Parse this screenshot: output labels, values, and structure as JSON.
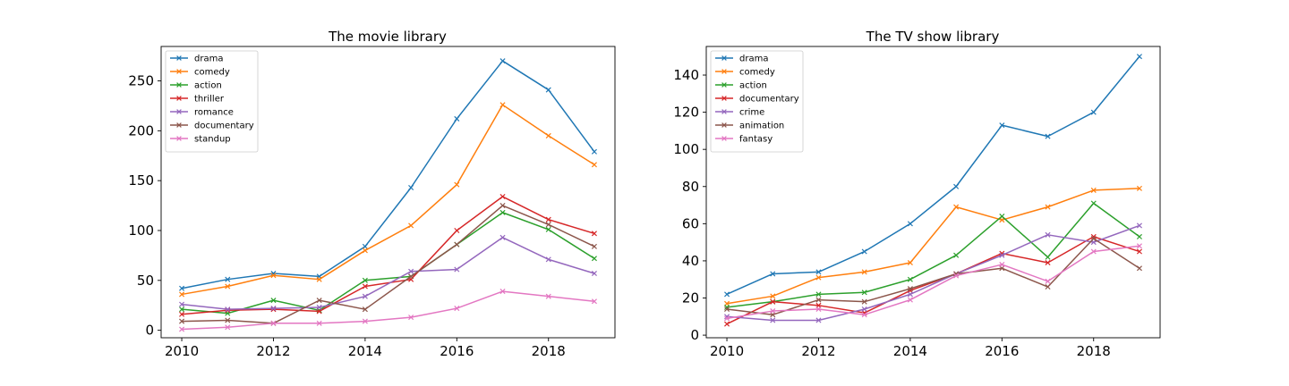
{
  "chart_data": [
    {
      "type": "line",
      "title": "The movie library",
      "xlabel": "",
      "ylabel": "",
      "x": [
        2010,
        2011,
        2012,
        2013,
        2014,
        2015,
        2016,
        2017,
        2018,
        2019
      ],
      "xlim": [
        2009.55,
        2019.45
      ],
      "ylim": [
        -7.5,
        284.5
      ],
      "xticks": [
        2010,
        2012,
        2014,
        2016,
        2018
      ],
      "yticks": [
        0,
        50,
        100,
        150,
        200,
        250
      ],
      "grid": false,
      "legend": "top-left",
      "marker": "x",
      "series": [
        {
          "name": "drama",
          "color": "#1f77b4",
          "values": [
            42,
            51,
            57,
            54,
            84,
            143,
            212,
            270,
            241,
            179
          ]
        },
        {
          "name": "comedy",
          "color": "#ff7f0e",
          "values": [
            36,
            44,
            55,
            51,
            80,
            105,
            146,
            226,
            195,
            166
          ]
        },
        {
          "name": "action",
          "color": "#2ca02c",
          "values": [
            21,
            17,
            30,
            20,
            50,
            54,
            86,
            118,
            101,
            72
          ]
        },
        {
          "name": "thriller",
          "color": "#d62728",
          "values": [
            16,
            20,
            21,
            19,
            44,
            51,
            100,
            134,
            111,
            97
          ]
        },
        {
          "name": "romance",
          "color": "#9467bd",
          "values": [
            26,
            21,
            22,
            23,
            34,
            59,
            61,
            93,
            71,
            57
          ]
        },
        {
          "name": "documentary",
          "color": "#8c564b",
          "values": [
            9,
            10,
            7,
            30,
            21,
            54,
            86,
            125,
            106,
            84
          ]
        },
        {
          "name": "standup",
          "color": "#e377c2",
          "values": [
            1,
            3,
            7,
            7,
            9,
            13,
            22,
            39,
            34,
            29
          ]
        }
      ]
    },
    {
      "type": "line",
      "title": "The TV show library",
      "xlabel": "",
      "ylabel": "",
      "x": [
        2010,
        2011,
        2012,
        2013,
        2014,
        2015,
        2016,
        2017,
        2018,
        2019
      ],
      "xlim": [
        2009.55,
        2019.45
      ],
      "ylim": [
        -1.4,
        155.4
      ],
      "xticks": [
        2010,
        2012,
        2014,
        2016,
        2018
      ],
      "yticks": [
        0,
        20,
        40,
        60,
        80,
        100,
        120,
        140
      ],
      "grid": false,
      "legend": "top-left",
      "marker": "x",
      "series": [
        {
          "name": "drama",
          "color": "#1f77b4",
          "values": [
            22,
            33,
            34,
            45,
            60,
            80,
            113,
            107,
            120,
            150
          ]
        },
        {
          "name": "comedy",
          "color": "#ff7f0e",
          "values": [
            17,
            21,
            31,
            34,
            39,
            69,
            62,
            69,
            78,
            79
          ]
        },
        {
          "name": "action",
          "color": "#2ca02c",
          "values": [
            15,
            18,
            22,
            23,
            30,
            43,
            64,
            42,
            71,
            53
          ]
        },
        {
          "name": "documentary",
          "color": "#d62728",
          "values": [
            6,
            18,
            16,
            12,
            24,
            33,
            44,
            39,
            53,
            45
          ]
        },
        {
          "name": "crime",
          "color": "#9467bd",
          "values": [
            10,
            8,
            8,
            14,
            22,
            33,
            43,
            54,
            50,
            59
          ]
        },
        {
          "name": "animation",
          "color": "#8c564b",
          "values": [
            14,
            11,
            19,
            18,
            25,
            33,
            36,
            26,
            52,
            36
          ]
        },
        {
          "name": "fantasy",
          "color": "#e377c2",
          "values": [
            9,
            13,
            14,
            11,
            19,
            32,
            38,
            29,
            45,
            48
          ]
        }
      ]
    }
  ]
}
